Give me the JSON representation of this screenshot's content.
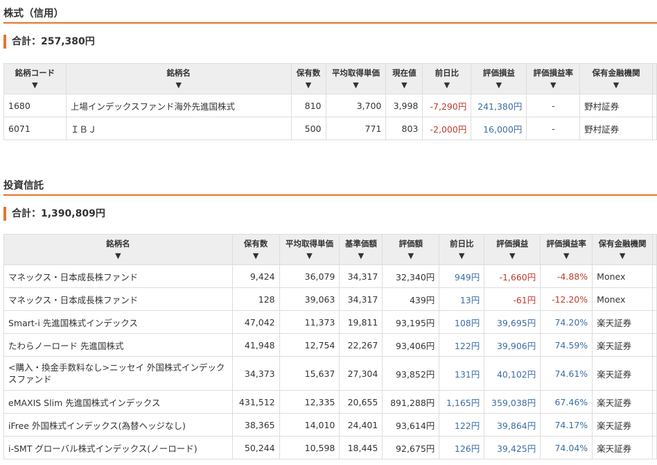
{
  "margin": {
    "title": "株式（信用）",
    "total": "合計：257,380円",
    "headers": [
      "銘柄コード",
      "銘柄名",
      "保有数",
      "平均取得単価",
      "現在値",
      "前日比",
      "評価損益",
      "評価損益率",
      "保有金融機関"
    ],
    "rows": [
      [
        "1680",
        "上場インデックスファンド海外先進国株式",
        "810",
        "3,700",
        "3,998",
        "-7,290円",
        "241,380円",
        "-",
        "野村証券"
      ],
      [
        "6071",
        "ＩＢＪ",
        "500",
        "771",
        "803",
        "-2,000円",
        "16,000円",
        "-",
        "野村証券"
      ]
    ]
  },
  "funds": {
    "title": "投資信託",
    "total": "合計：1,390,809円",
    "headers": [
      "銘柄名",
      "保有数",
      "平均取得単価",
      "基準価額",
      "評価額",
      "前日比",
      "評価損益",
      "評価損益率",
      "保有金融機関"
    ],
    "rows": [
      [
        "マネックス・日本成長株ファンド",
        "9,424",
        "36,079",
        "34,317",
        "32,340円",
        "949円",
        "-1,660円",
        "-4.88%",
        "Monex"
      ],
      [
        "マネックス・日本成長株ファンド",
        "128",
        "39,063",
        "34,317",
        "439円",
        "13円",
        "-61円",
        "-12.20%",
        "Monex"
      ],
      [
        "Smart-i 先進国株式インデックス",
        "47,042",
        "11,373",
        "19,811",
        "93,195円",
        "108円",
        "39,695円",
        "74.20%",
        "楽天証券"
      ],
      [
        "たわらノーロード 先進国株式",
        "41,948",
        "12,754",
        "22,267",
        "93,406円",
        "122円",
        "39,906円",
        "74.59%",
        "楽天証券"
      ],
      [
        "<購入・換金手数料なし>ニッセイ 外国株式インデックスファンド",
        "34,373",
        "15,637",
        "27,304",
        "93,852円",
        "131円",
        "40,102円",
        "74.61%",
        "楽天証券"
      ],
      [
        "eMAXIS Slim 先進国株式インデックス",
        "431,512",
        "12,335",
        "20,655",
        "891,288円",
        "1,165円",
        "359,038円",
        "67.46%",
        "楽天証券"
      ],
      [
        "iFree 外国株式インデックス(為替ヘッジなし)",
        "38,365",
        "14,010",
        "24,401",
        "93,614円",
        "122円",
        "39,864円",
        "74.17%",
        "楽天証券"
      ],
      [
        "i-SMT グローバル株式インデックス(ノーロード)",
        "50,244",
        "10,598",
        "18,445",
        "92,675円",
        "126円",
        "39,425円",
        "74.04%",
        "楽天証券"
      ]
    ]
  },
  "sort_icon": "triangle-down-icon",
  "sort_glyph": "▼",
  "colors": {
    "accent": "#e8742a",
    "negative": "#c0392b",
    "positive": "#3a6ea5"
  }
}
